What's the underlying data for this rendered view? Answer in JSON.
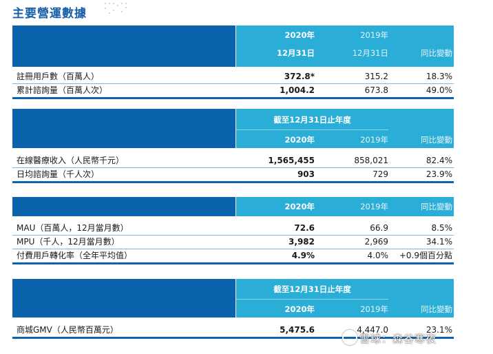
{
  "title": "主要營運數據",
  "sections": [
    {
      "period": "",
      "head_2020": "2020年",
      "head_2019": "2019年",
      "sub_2020": "12月31日",
      "sub_2019": "12月31日",
      "change": "同比變動",
      "rows": [
        {
          "label": "註冊用戶數（百萬人）",
          "v2020": "372.8*",
          "v2019": "315.2",
          "change": "18.3%"
        },
        {
          "label": "累計諮詢量（百萬人次）",
          "v2020": "1,004.2",
          "v2019": "673.8",
          "change": "49.0%"
        }
      ]
    },
    {
      "period": "截至12月31日止年度",
      "head_2020": "2020年",
      "head_2019": "2019年",
      "change": "同比變動",
      "rows": [
        {
          "label": "在線醫療收入（人民幣千元）",
          "v2020": "1,565,455",
          "v2019": "858,021",
          "change": "82.4%"
        },
        {
          "label": "日均諮詢量（千人次）",
          "v2020": "903",
          "v2019": "729",
          "change": "23.9%"
        }
      ]
    },
    {
      "head_2020": "2020年",
      "head_2019": "2019年",
      "change": "同比變動",
      "rows": [
        {
          "label": "MAU（百萬人，12月當月數）",
          "v2020": "72.6",
          "v2019": "66.9",
          "change": "8.5%"
        },
        {
          "label": "MPU（千人，12月當月數）",
          "v2020": "3,982",
          "v2019": "2,969",
          "change": "34.1%"
        },
        {
          "label": "付費用戶轉化率（全年平均值）",
          "v2020": "4.9%",
          "v2019": "4.0%",
          "change": "+0.9個百分點"
        }
      ]
    },
    {
      "period": "截至12月31日止年度",
      "head_2020": "2020年",
      "head_2019": "2019年",
      "change": "同比變動",
      "rows": [
        {
          "label": "商城GMV（人民幣百萬元）",
          "v2020": "5,475.6",
          "v2019": "4,447.0",
          "change": "23.1%"
        }
      ]
    }
  ],
  "watermark": "雪球：森谷寒夜",
  "colors": {
    "title": "#1a5fa8",
    "header_dark": "#0b62ad",
    "header_light": "#2aaed8"
  }
}
